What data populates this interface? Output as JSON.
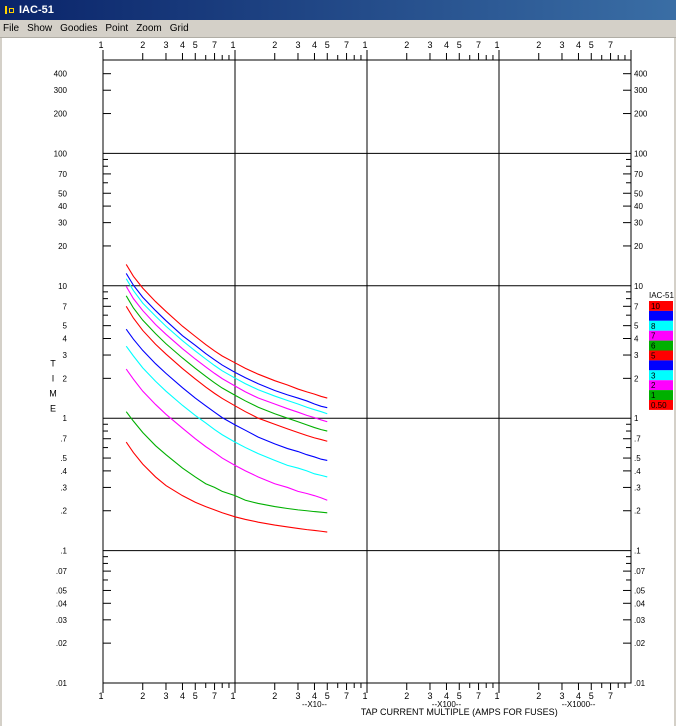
{
  "window": {
    "title": "IAC-51"
  },
  "menu": [
    "File",
    "Show",
    "Goodies",
    "Point",
    "Zoom",
    "Grid"
  ],
  "chart_data": {
    "type": "line",
    "scale": "log-log",
    "xlim": [
      1,
      10000
    ],
    "ylim": [
      0.01,
      500
    ],
    "x_decade_suffixes": [
      "",
      "--X10--",
      "--X100--",
      "--X1000--"
    ],
    "xlabel": "TAP CURRENT MULTIPLE (AMPS FOR FUSES)",
    "ylabel": "TIME",
    "x_tick_labels": [
      "1",
      "2",
      "3",
      "4",
      "5",
      "7"
    ],
    "y_tick_labels": [
      ".01",
      ".02",
      ".03",
      ".04",
      ".05",
      ".07",
      ".1",
      ".2",
      ".3",
      ".4",
      ".5",
      ".7",
      "1",
      "2",
      "3",
      "4",
      "5",
      "7",
      "10",
      "20",
      "30",
      "40",
      "50",
      "70",
      "100",
      "200",
      "300",
      "400"
    ],
    "legend": {
      "title": "IAC-51",
      "position": "right",
      "entries": [
        {
          "label": "10",
          "color": "#ff0000"
        },
        {
          "label": "",
          "color": "#0000ff"
        },
        {
          "label": "8",
          "color": "#00ffff"
        },
        {
          "label": "7",
          "color": "#ff00ff"
        },
        {
          "label": "6",
          "color": "#00b000"
        },
        {
          "label": "5",
          "color": "#ff0000"
        },
        {
          "label": "",
          "color": "#0000ff"
        },
        {
          "label": "3",
          "color": "#00ffff"
        },
        {
          "label": "2",
          "color": "#ff00ff"
        },
        {
          "label": "1",
          "color": "#00b000"
        },
        {
          "label": "0.50",
          "color": "#ff0000"
        }
      ]
    },
    "x": [
      1.5,
      1.7,
      2,
      2.5,
      3,
      4,
      5,
      6,
      7,
      8,
      10,
      12,
      15,
      20,
      25,
      30,
      35,
      40,
      45,
      50
    ],
    "series": [
      {
        "name": "10",
        "color": "#ff0000",
        "values": [
          14.5,
          11.8,
          9.6,
          7.6,
          6.4,
          4.95,
          4.15,
          3.6,
          3.22,
          2.95,
          2.62,
          2.38,
          2.15,
          1.92,
          1.78,
          1.66,
          1.58,
          1.52,
          1.46,
          1.42
        ]
      },
      {
        "name": "",
        "color": "#0000ff",
        "values": [
          12.4,
          10.1,
          8.2,
          6.5,
          5.45,
          4.2,
          3.55,
          3.08,
          2.76,
          2.52,
          2.22,
          2.02,
          1.82,
          1.62,
          1.5,
          1.42,
          1.35,
          1.28,
          1.23,
          1.2
        ]
      },
      {
        "name": "8",
        "color": "#00ffff",
        "values": [
          11.3,
          9.2,
          7.4,
          5.9,
          4.95,
          3.85,
          3.22,
          2.8,
          2.5,
          2.28,
          2.01,
          1.82,
          1.64,
          1.47,
          1.36,
          1.28,
          1.21,
          1.16,
          1.12,
          1.08
        ]
      },
      {
        "name": "7",
        "color": "#ff00ff",
        "values": [
          9.9,
          8.0,
          6.5,
          5.1,
          4.3,
          3.35,
          2.8,
          2.44,
          2.18,
          1.99,
          1.75,
          1.58,
          1.42,
          1.28,
          1.18,
          1.11,
          1.05,
          1.01,
          0.97,
          0.94
        ]
      },
      {
        "name": "6",
        "color": "#00b000",
        "values": [
          8.4,
          6.8,
          5.5,
          4.35,
          3.65,
          2.85,
          2.38,
          2.07,
          1.85,
          1.69,
          1.49,
          1.35,
          1.21,
          1.08,
          1.0,
          0.94,
          0.89,
          0.85,
          0.82,
          0.8
        ]
      },
      {
        "name": "5",
        "color": "#ff0000",
        "values": [
          7.0,
          5.7,
          4.6,
          3.62,
          3.05,
          2.37,
          1.98,
          1.72,
          1.54,
          1.41,
          1.24,
          1.12,
          1.0,
          0.9,
          0.83,
          0.78,
          0.74,
          0.71,
          0.69,
          0.67
        ]
      },
      {
        "name": "",
        "color": "#0000ff",
        "values": [
          4.7,
          3.95,
          3.25,
          2.58,
          2.18,
          1.7,
          1.42,
          1.24,
          1.11,
          1.01,
          0.89,
          0.81,
          0.72,
          0.64,
          0.59,
          0.56,
          0.53,
          0.51,
          0.49,
          0.48
        ]
      },
      {
        "name": "3",
        "color": "#00ffff",
        "values": [
          3.5,
          2.95,
          2.4,
          1.9,
          1.6,
          1.25,
          1.05,
          0.92,
          0.82,
          0.75,
          0.66,
          0.6,
          0.54,
          0.48,
          0.44,
          0.42,
          0.4,
          0.38,
          0.37,
          0.36
        ]
      },
      {
        "name": "2",
        "color": "#ff00ff",
        "values": [
          2.35,
          1.97,
          1.6,
          1.27,
          1.07,
          0.84,
          0.7,
          0.61,
          0.55,
          0.5,
          0.44,
          0.4,
          0.36,
          0.32,
          0.3,
          0.28,
          0.27,
          0.26,
          0.25,
          0.24
        ]
      },
      {
        "name": "1",
        "color": "#00b000",
        "values": [
          1.12,
          0.95,
          0.78,
          0.62,
          0.53,
          0.42,
          0.36,
          0.32,
          0.3,
          0.28,
          0.26,
          0.24,
          0.227,
          0.215,
          0.208,
          0.203,
          0.2,
          0.197,
          0.195,
          0.193
        ]
      },
      {
        "name": "0.50",
        "color": "#ff0000",
        "values": [
          0.66,
          0.55,
          0.45,
          0.36,
          0.31,
          0.26,
          0.232,
          0.215,
          0.203,
          0.193,
          0.18,
          0.172,
          0.164,
          0.156,
          0.151,
          0.147,
          0.144,
          0.142,
          0.14,
          0.138
        ]
      }
    ]
  }
}
